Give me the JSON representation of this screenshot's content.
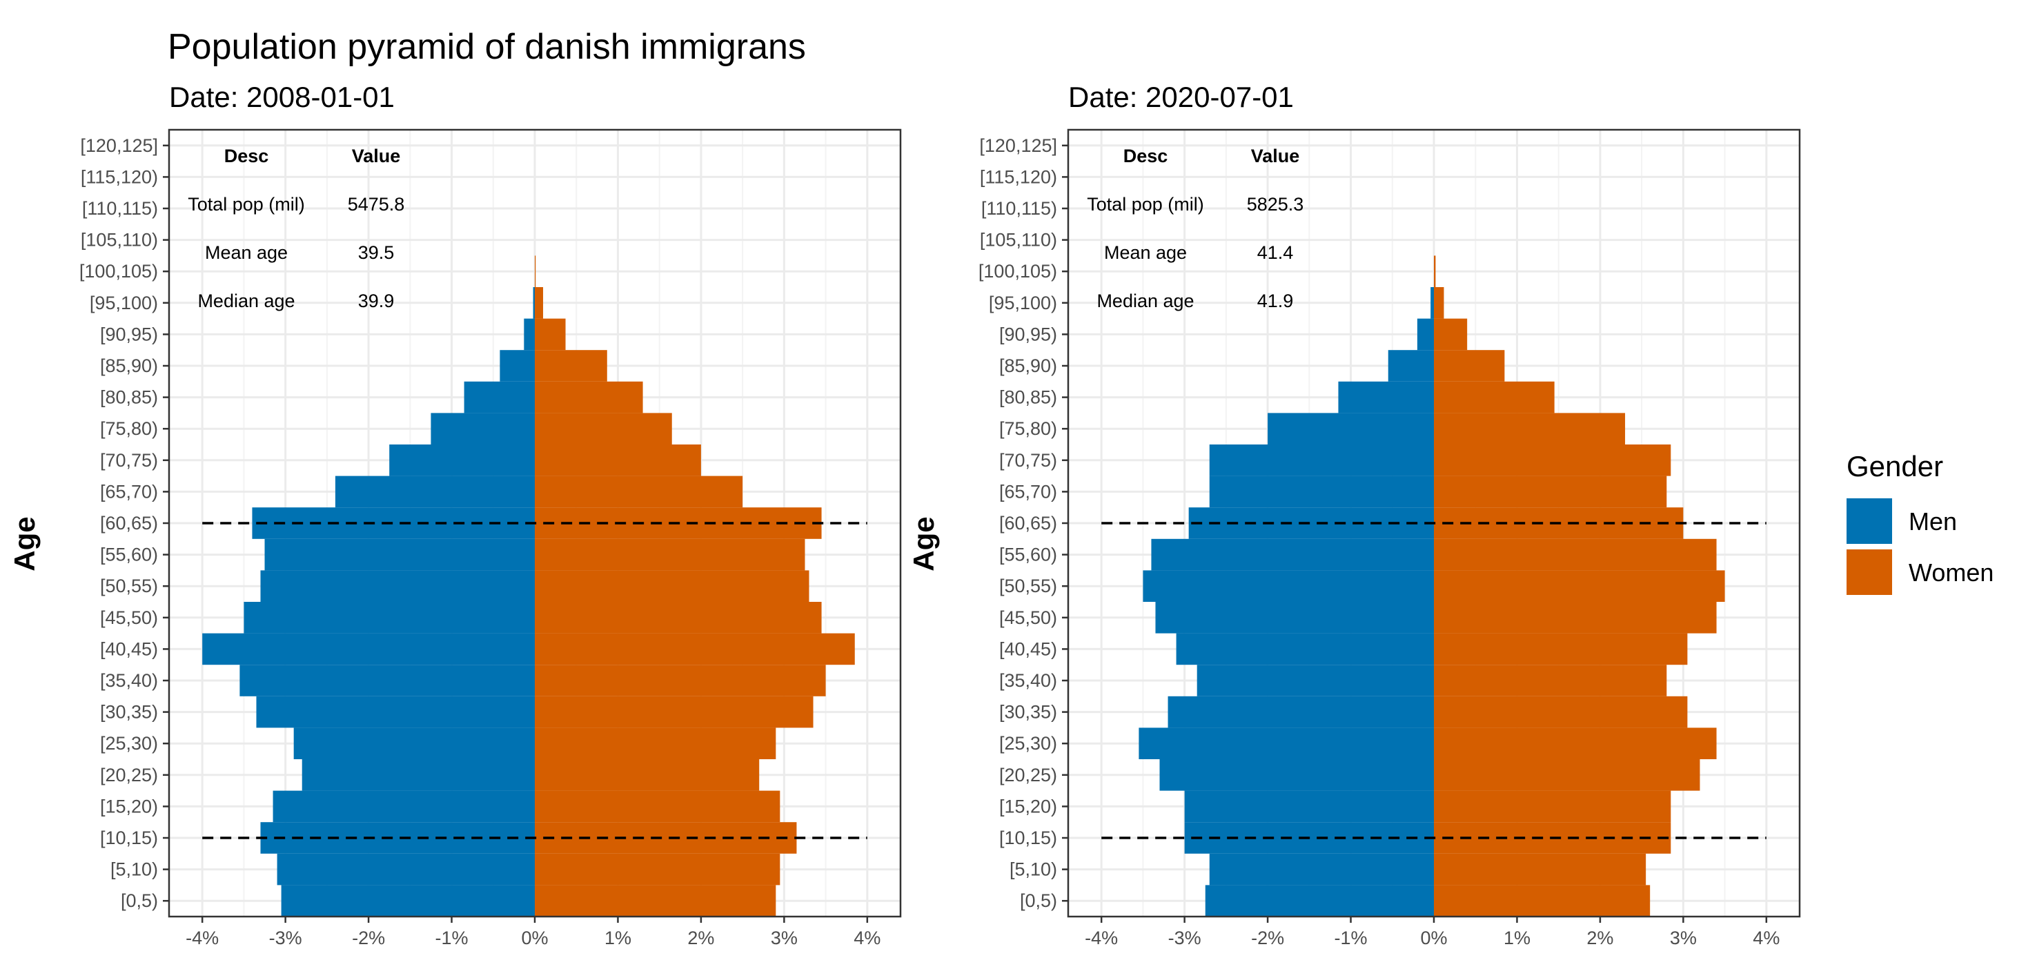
{
  "title": "Population pyramid of danish immigrans",
  "legend": {
    "title": "Gender",
    "entries": [
      {
        "label": "Men",
        "color": "#0072B2"
      },
      {
        "label": "Women",
        "color": "#D55E00"
      }
    ]
  },
  "chart_data": [
    {
      "type": "bar",
      "orientation": "horizontal",
      "subtitle": "Date: 2008-01-01",
      "ylabel": "Age",
      "xlabel": "",
      "xlim": [
        -4.4,
        4.4
      ],
      "x_ticks": [
        "-4%",
        "-3%",
        "-2%",
        "-1%",
        "0%",
        "1%",
        "2%",
        "3%",
        "4%"
      ],
      "grid": true,
      "legend_position": "right",
      "categories": [
        "[0,5)",
        "[5,10)",
        "[10,15)",
        "[15,20)",
        "[20,25)",
        "[25,30)",
        "[30,35)",
        "[35,40)",
        "[40,45)",
        "[45,50)",
        "[50,55)",
        "[55,60)",
        "[60,65)",
        "[65,70)",
        "[70,75)",
        "[75,80)",
        "[80,85)",
        "[85,90)",
        "[90,95)",
        "[95,100)",
        "[100,105)",
        "[105,110)",
        "[110,115)",
        "[115,120)",
        "[120,125]"
      ],
      "series": [
        {
          "name": "Men",
          "color": "#0072B2",
          "values": [
            -3.05,
            -3.1,
            -3.3,
            -3.15,
            -2.8,
            -2.9,
            -3.35,
            -3.55,
            -4.0,
            -3.5,
            -3.3,
            -3.25,
            -3.4,
            -2.4,
            -1.75,
            -1.25,
            -0.85,
            -0.42,
            -0.13,
            -0.02,
            0,
            0,
            0,
            0,
            0
          ]
        },
        {
          "name": "Women",
          "color": "#D55E00",
          "values": [
            2.9,
            2.95,
            3.15,
            2.95,
            2.7,
            2.9,
            3.35,
            3.5,
            3.85,
            3.45,
            3.3,
            3.25,
            3.45,
            2.5,
            2.0,
            1.65,
            1.3,
            0.87,
            0.37,
            0.1,
            0.01,
            0,
            0,
            0,
            0
          ]
        }
      ],
      "reference_lines": [
        "[60,65)",
        "[10,15)"
      ],
      "table": {
        "headers": [
          "Desc",
          "Value"
        ],
        "rows": [
          [
            "Total pop (mil)",
            "5475.8"
          ],
          [
            "Mean age",
            "39.5"
          ],
          [
            "Median age",
            "39.9"
          ]
        ]
      }
    },
    {
      "type": "bar",
      "orientation": "horizontal",
      "subtitle": "Date: 2020-07-01",
      "ylabel": "Age",
      "xlabel": "",
      "xlim": [
        -4.4,
        4.4
      ],
      "x_ticks": [
        "-4%",
        "-3%",
        "-2%",
        "-1%",
        "0%",
        "1%",
        "2%",
        "3%",
        "4%"
      ],
      "grid": true,
      "legend_position": "right",
      "categories": [
        "[0,5)",
        "[5,10)",
        "[10,15)",
        "[15,20)",
        "[20,25)",
        "[25,30)",
        "[30,35)",
        "[35,40)",
        "[40,45)",
        "[45,50)",
        "[50,55)",
        "[55,60)",
        "[60,65)",
        "[65,70)",
        "[70,75)",
        "[75,80)",
        "[80,85)",
        "[85,90)",
        "[90,95)",
        "[95,100)",
        "[100,105)",
        "[105,110)",
        "[110,115)",
        "[115,120)",
        "[120,125]"
      ],
      "series": [
        {
          "name": "Men",
          "color": "#0072B2",
          "values": [
            -2.75,
            -2.7,
            -3.0,
            -3.0,
            -3.3,
            -3.55,
            -3.2,
            -2.85,
            -3.1,
            -3.35,
            -3.5,
            -3.4,
            -2.95,
            -2.7,
            -2.7,
            -2.0,
            -1.15,
            -0.55,
            -0.2,
            -0.04,
            0,
            0,
            0,
            0,
            0
          ]
        },
        {
          "name": "Women",
          "color": "#D55E00",
          "values": [
            2.6,
            2.55,
            2.85,
            2.85,
            3.2,
            3.4,
            3.05,
            2.8,
            3.05,
            3.4,
            3.5,
            3.4,
            3.0,
            2.8,
            2.85,
            2.3,
            1.45,
            0.85,
            0.4,
            0.12,
            0.02,
            0,
            0,
            0,
            0
          ]
        }
      ],
      "reference_lines": [
        "[60,65)",
        "[10,15)"
      ],
      "table": {
        "headers": [
          "Desc",
          "Value"
        ],
        "rows": [
          [
            "Total pop (mil)",
            "5825.3"
          ],
          [
            "Mean age",
            "41.4"
          ],
          [
            "Median age",
            "41.9"
          ]
        ]
      }
    }
  ]
}
